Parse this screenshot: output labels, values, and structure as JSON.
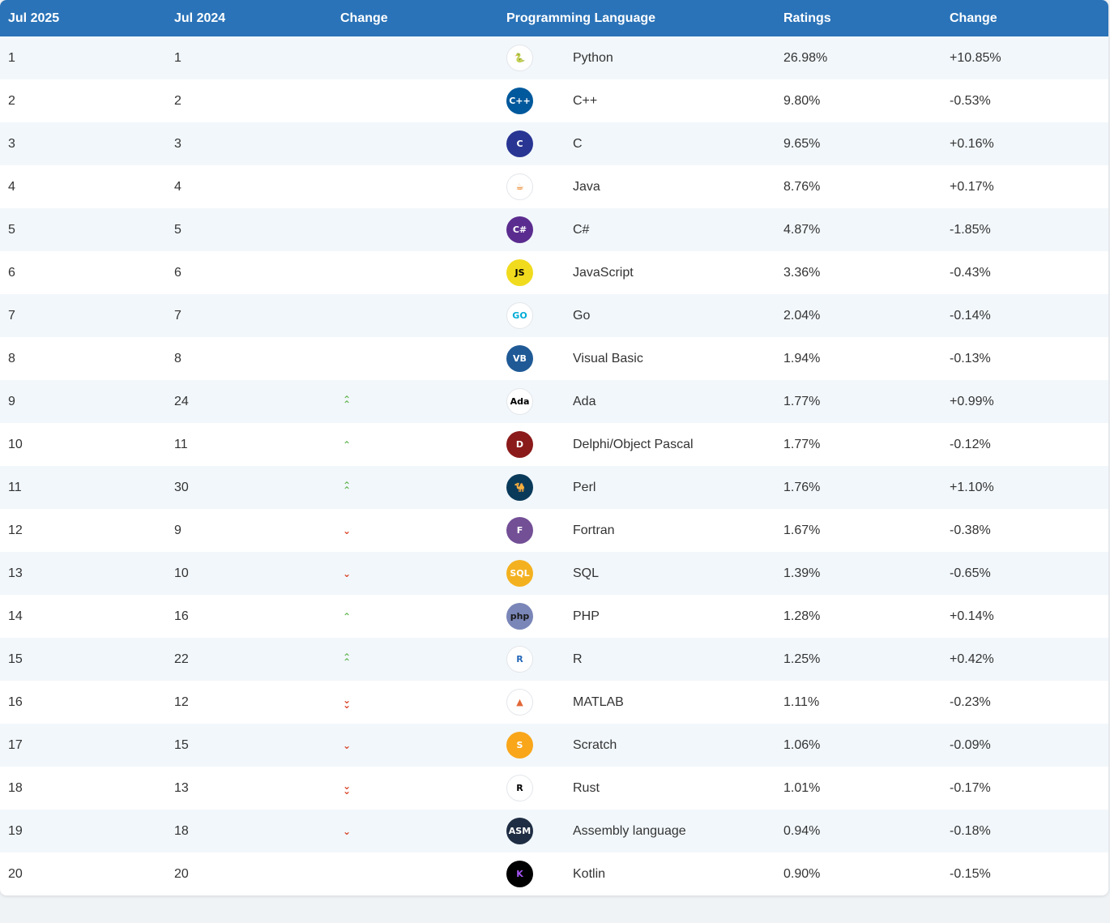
{
  "header": {
    "rank_current": "Jul 2025",
    "rank_previous": "Jul 2024",
    "change": "Change",
    "language": "Programming Language",
    "ratings": "Ratings",
    "ratings_change": "Change"
  },
  "colors": {
    "header_bg": "#2a73b8",
    "row_alt_bg": "#f2f7fb",
    "trend_up": "#6bb85a",
    "trend_down": "#d9472b"
  },
  "rows": [
    {
      "current": "1",
      "previous": "1",
      "trend": "none",
      "icon": "python-icon",
      "icon_text": "🐍",
      "icon_bg": "#ffffff",
      "icon_fg": "#3b77a8",
      "language": "Python",
      "rating": "26.98%",
      "change": "+10.85%"
    },
    {
      "current": "2",
      "previous": "2",
      "trend": "none",
      "icon": "cplusplus-icon",
      "icon_text": "C++",
      "icon_bg": "#00599c",
      "icon_fg": "#ffffff",
      "language": "C++",
      "rating": "9.80%",
      "change": "-0.53%"
    },
    {
      "current": "3",
      "previous": "3",
      "trend": "none",
      "icon": "c-icon",
      "icon_text": "C",
      "icon_bg": "#283593",
      "icon_fg": "#ffffff",
      "language": "C",
      "rating": "9.65%",
      "change": "+0.16%"
    },
    {
      "current": "4",
      "previous": "4",
      "trend": "none",
      "icon": "java-icon",
      "icon_text": "☕",
      "icon_bg": "#ffffff",
      "icon_fg": "#e76f00",
      "language": "Java",
      "rating": "8.76%",
      "change": "+0.17%"
    },
    {
      "current": "5",
      "previous": "5",
      "trend": "none",
      "icon": "csharp-icon",
      "icon_text": "C#",
      "icon_bg": "#5b2c8f",
      "icon_fg": "#ffffff",
      "language": "C#",
      "rating": "4.87%",
      "change": "-1.85%"
    },
    {
      "current": "6",
      "previous": "6",
      "trend": "none",
      "icon": "javascript-icon",
      "icon_text": "JS",
      "icon_bg": "#f0db1e",
      "icon_fg": "#000000",
      "language": "JavaScript",
      "rating": "3.36%",
      "change": "-0.43%"
    },
    {
      "current": "7",
      "previous": "7",
      "trend": "none",
      "icon": "go-icon",
      "icon_text": "GO",
      "icon_bg": "#ffffff",
      "icon_fg": "#00acd7",
      "language": "Go",
      "rating": "2.04%",
      "change": "-0.14%"
    },
    {
      "current": "8",
      "previous": "8",
      "trend": "none",
      "icon": "visual-basic-icon",
      "icon_text": "VB",
      "icon_bg": "#1f5a96",
      "icon_fg": "#ffffff",
      "language": "Visual Basic",
      "rating": "1.94%",
      "change": "-0.13%"
    },
    {
      "current": "9",
      "previous": "24",
      "trend": "up2",
      "icon": "ada-icon",
      "icon_text": "Ada",
      "icon_bg": "#ffffff",
      "icon_fg": "#000000",
      "language": "Ada",
      "rating": "1.77%",
      "change": "+0.99%"
    },
    {
      "current": "10",
      "previous": "11",
      "trend": "up1",
      "icon": "delphi-icon",
      "icon_text": "D",
      "icon_bg": "#8b1a1a",
      "icon_fg": "#ffffff",
      "language": "Delphi/Object Pascal",
      "rating": "1.77%",
      "change": "-0.12%"
    },
    {
      "current": "11",
      "previous": "30",
      "trend": "up2",
      "icon": "perl-icon",
      "icon_text": "🐪",
      "icon_bg": "#0a3a5a",
      "icon_fg": "#ffffff",
      "language": "Perl",
      "rating": "1.76%",
      "change": "+1.10%"
    },
    {
      "current": "12",
      "previous": "9",
      "trend": "down1",
      "icon": "fortran-icon",
      "icon_text": "F",
      "icon_bg": "#734f96",
      "icon_fg": "#ffffff",
      "language": "Fortran",
      "rating": "1.67%",
      "change": "-0.38%"
    },
    {
      "current": "13",
      "previous": "10",
      "trend": "down1",
      "icon": "sql-icon",
      "icon_text": "SQL",
      "icon_bg": "#f4b11f",
      "icon_fg": "#ffffff",
      "language": "SQL",
      "rating": "1.39%",
      "change": "-0.65%"
    },
    {
      "current": "14",
      "previous": "16",
      "trend": "up1",
      "icon": "php-icon",
      "icon_text": "php",
      "icon_bg": "#7a86b8",
      "icon_fg": "#1a1a1a",
      "language": "PHP",
      "rating": "1.28%",
      "change": "+0.14%"
    },
    {
      "current": "15",
      "previous": "22",
      "trend": "up2",
      "icon": "r-icon",
      "icon_text": "R",
      "icon_bg": "#ffffff",
      "icon_fg": "#2568b8",
      "language": "R",
      "rating": "1.25%",
      "change": "+0.42%"
    },
    {
      "current": "16",
      "previous": "12",
      "trend": "down2",
      "icon": "matlab-icon",
      "icon_text": "▲",
      "icon_bg": "#ffffff",
      "icon_fg": "#e16737",
      "language": "MATLAB",
      "rating": "1.11%",
      "change": "-0.23%"
    },
    {
      "current": "17",
      "previous": "15",
      "trend": "down1",
      "icon": "scratch-icon",
      "icon_text": "S",
      "icon_bg": "#f9a61a",
      "icon_fg": "#ffffff",
      "language": "Scratch",
      "rating": "1.06%",
      "change": "-0.09%"
    },
    {
      "current": "18",
      "previous": "13",
      "trend": "down2",
      "icon": "rust-icon",
      "icon_text": "R",
      "icon_bg": "#ffffff",
      "icon_fg": "#000000",
      "language": "Rust",
      "rating": "1.01%",
      "change": "-0.17%"
    },
    {
      "current": "19",
      "previous": "18",
      "trend": "down1",
      "icon": "assembly-icon",
      "icon_text": "ASM",
      "icon_bg": "#1f2d44",
      "icon_fg": "#ffffff",
      "language": "Assembly language",
      "rating": "0.94%",
      "change": "-0.18%"
    },
    {
      "current": "20",
      "previous": "20",
      "trend": "none",
      "icon": "kotlin-icon",
      "icon_text": "K",
      "icon_bg": "#000000",
      "icon_fg": "#a855f7",
      "language": "Kotlin",
      "rating": "0.90%",
      "change": "-0.15%"
    }
  ]
}
